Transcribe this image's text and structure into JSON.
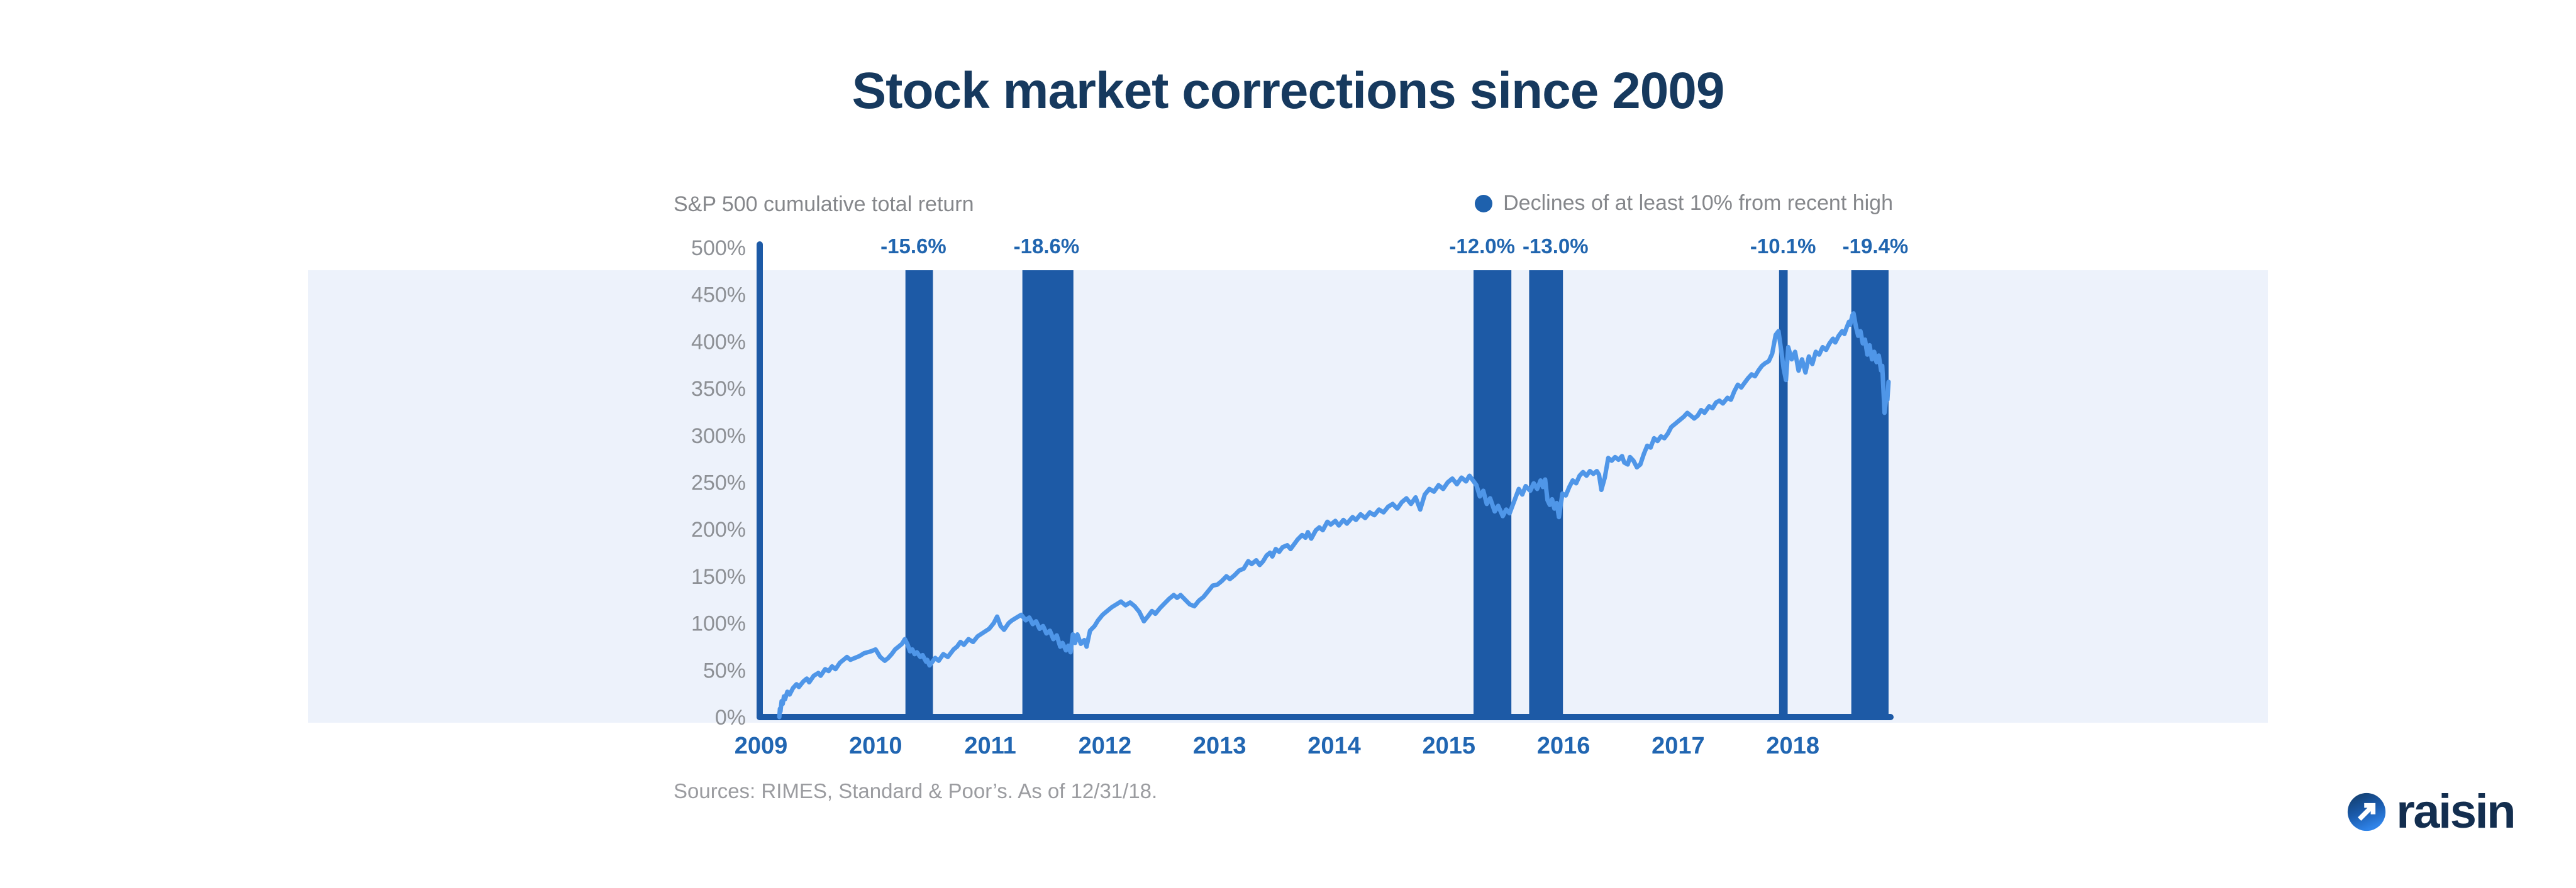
{
  "title": "Stock market corrections since 2009",
  "legend": {
    "series_label": "S&P 500 cumulative total return",
    "declines_label": "Declines of at least 10% from recent high"
  },
  "sources": "Sources: RIMES, Standard & Poor’s. As of 12/31/18.",
  "logo": {
    "text": "raisin",
    "icon": "arrow-up-right-circle-icon"
  },
  "colors": {
    "title_navy": "#16395e",
    "bar_blue": "#1d5aa6",
    "line_blue": "#4f96e8",
    "band_bg": "#edf2fb",
    "axis_text_blue": "#2166b2",
    "gray_text": "#85878b",
    "logo_navy": "#132e4f"
  },
  "chart_data": {
    "type": "line",
    "title": "Stock market corrections since 2009",
    "series_name": "S&P 500 cumulative total return",
    "xlabel": "",
    "ylabel": "S&P 500 cumulative total return (%)",
    "grid": false,
    "legend_position": "top",
    "x_ticks": [
      2009,
      2010,
      2011,
      2012,
      2013,
      2014,
      2015,
      2016,
      2017,
      2018
    ],
    "x_range": [
      2008.9,
      2019.2
    ],
    "y_axis": {
      "min": 0,
      "max": 500,
      "step": 50,
      "suffix": "%"
    },
    "declines": [
      {
        "label": "-15.6%",
        "from": 2010.26,
        "to": 2010.5,
        "label_at": 2010.33
      },
      {
        "label": "-18.6%",
        "from": 2011.28,
        "to": 2011.725,
        "label_at": 2011.49
      },
      {
        "label": "-12.0%",
        "from": 2015.215,
        "to": 2015.545,
        "label_at": 2015.29
      },
      {
        "label": "-13.0%",
        "from": 2015.7,
        "to": 2015.995,
        "label_at": 2015.93
      },
      {
        "label": "-10.1%",
        "from": 2017.88,
        "to": 2017.955,
        "label_at": 2017.915
      },
      {
        "label": "-19.4%",
        "from": 2018.51,
        "to": 2018.835,
        "label_at": 2018.72
      }
    ],
    "points": [
      [
        2009.16,
        0
      ],
      [
        2009.165,
        9
      ],
      [
        2009.17,
        6
      ],
      [
        2009.18,
        17
      ],
      [
        2009.19,
        14
      ],
      [
        2009.2,
        22
      ],
      [
        2009.21,
        19
      ],
      [
        2009.23,
        27
      ],
      [
        2009.25,
        24
      ],
      [
        2009.28,
        31
      ],
      [
        2009.31,
        35
      ],
      [
        2009.33,
        32
      ],
      [
        2009.37,
        38
      ],
      [
        2009.4,
        41
      ],
      [
        2009.42,
        37
      ],
      [
        2009.46,
        44
      ],
      [
        2009.5,
        47
      ],
      [
        2009.52,
        44
      ],
      [
        2009.56,
        51
      ],
      [
        2009.59,
        49
      ],
      [
        2009.62,
        54
      ],
      [
        2009.65,
        51
      ],
      [
        2009.69,
        58
      ],
      [
        2009.72,
        61
      ],
      [
        2009.75,
        64
      ],
      [
        2009.78,
        61
      ],
      [
        2009.82,
        63
      ],
      [
        2009.86,
        65
      ],
      [
        2009.9,
        68
      ],
      [
        2009.96,
        70
      ],
      [
        2010.0,
        72
      ],
      [
        2010.04,
        64
      ],
      [
        2010.08,
        60
      ],
      [
        2010.11,
        63
      ],
      [
        2010.14,
        67
      ],
      [
        2010.17,
        72
      ],
      [
        2010.2,
        75
      ],
      [
        2010.23,
        78
      ],
      [
        2010.255,
        83
      ],
      [
        2010.28,
        77
      ],
      [
        2010.3,
        70
      ],
      [
        2010.32,
        72
      ],
      [
        2010.34,
        67
      ],
      [
        2010.36,
        69
      ],
      [
        2010.39,
        64
      ],
      [
        2010.41,
        66
      ],
      [
        2010.44,
        59
      ],
      [
        2010.45,
        61
      ],
      [
        2010.47,
        55
      ],
      [
        2010.49,
        58
      ],
      [
        2010.52,
        63
      ],
      [
        2010.55,
        60
      ],
      [
        2010.59,
        67
      ],
      [
        2010.63,
        64
      ],
      [
        2010.68,
        72
      ],
      [
        2010.71,
        75
      ],
      [
        2010.74,
        80
      ],
      [
        2010.77,
        77
      ],
      [
        2010.81,
        83
      ],
      [
        2010.85,
        80
      ],
      [
        2010.89,
        86
      ],
      [
        2010.94,
        90
      ],
      [
        2010.99,
        94
      ],
      [
        2011.03,
        100
      ],
      [
        2011.06,
        107
      ],
      [
        2011.09,
        97
      ],
      [
        2011.12,
        93
      ],
      [
        2011.16,
        100
      ],
      [
        2011.19,
        103
      ],
      [
        2011.23,
        106
      ],
      [
        2011.27,
        109
      ],
      [
        2011.31,
        103
      ],
      [
        2011.34,
        106
      ],
      [
        2011.37,
        99
      ],
      [
        2011.4,
        102
      ],
      [
        2011.43,
        94
      ],
      [
        2011.46,
        97
      ],
      [
        2011.49,
        89
      ],
      [
        2011.52,
        92
      ],
      [
        2011.55,
        83
      ],
      [
        2011.58,
        87
      ],
      [
        2011.61,
        75
      ],
      [
        2011.63,
        79
      ],
      [
        2011.66,
        71
      ],
      [
        2011.68,
        76
      ],
      [
        2011.7,
        69
      ],
      [
        2011.72,
        88
      ],
      [
        2011.74,
        79
      ],
      [
        2011.76,
        88
      ],
      [
        2011.79,
        78
      ],
      [
        2011.82,
        82
      ],
      [
        2011.84,
        75
      ],
      [
        2011.87,
        92
      ],
      [
        2011.91,
        97
      ],
      [
        2011.94,
        103
      ],
      [
        2011.98,
        109
      ],
      [
        2012.02,
        113
      ],
      [
        2012.06,
        117
      ],
      [
        2012.1,
        120
      ],
      [
        2012.14,
        123
      ],
      [
        2012.18,
        119
      ],
      [
        2012.22,
        122
      ],
      [
        2012.26,
        118
      ],
      [
        2012.3,
        112
      ],
      [
        2012.34,
        102
      ],
      [
        2012.38,
        108
      ],
      [
        2012.41,
        113
      ],
      [
        2012.44,
        110
      ],
      [
        2012.48,
        116
      ],
      [
        2012.52,
        121
      ],
      [
        2012.56,
        126
      ],
      [
        2012.6,
        130
      ],
      [
        2012.63,
        127
      ],
      [
        2012.66,
        130
      ],
      [
        2012.7,
        125
      ],
      [
        2012.74,
        120
      ],
      [
        2012.78,
        118
      ],
      [
        2012.82,
        124
      ],
      [
        2012.86,
        128
      ],
      [
        2012.9,
        134
      ],
      [
        2012.94,
        140
      ],
      [
        2012.98,
        141
      ],
      [
        2013.02,
        145
      ],
      [
        2013.06,
        150
      ],
      [
        2013.09,
        147
      ],
      [
        2013.13,
        151
      ],
      [
        2013.17,
        156
      ],
      [
        2013.21,
        158
      ],
      [
        2013.25,
        166
      ],
      [
        2013.28,
        163
      ],
      [
        2013.32,
        167
      ],
      [
        2013.35,
        162
      ],
      [
        2013.38,
        166
      ],
      [
        2013.41,
        172
      ],
      [
        2013.44,
        175
      ],
      [
        2013.46,
        171
      ],
      [
        2013.49,
        179
      ],
      [
        2013.52,
        176
      ],
      [
        2013.55,
        181
      ],
      [
        2013.59,
        183
      ],
      [
        2013.62,
        179
      ],
      [
        2013.65,
        184
      ],
      [
        2013.68,
        189
      ],
      [
        2013.72,
        194
      ],
      [
        2013.75,
        191
      ],
      [
        2013.77,
        197
      ],
      [
        2013.8,
        190
      ],
      [
        2013.84,
        199
      ],
      [
        2013.87,
        202
      ],
      [
        2013.9,
        199
      ],
      [
        2013.94,
        208
      ],
      [
        2013.97,
        205
      ],
      [
        2014.01,
        209
      ],
      [
        2014.04,
        204
      ],
      [
        2014.08,
        210
      ],
      [
        2014.11,
        206
      ],
      [
        2014.16,
        213
      ],
      [
        2014.19,
        210
      ],
      [
        2014.23,
        216
      ],
      [
        2014.27,
        212
      ],
      [
        2014.31,
        218
      ],
      [
        2014.35,
        215
      ],
      [
        2014.39,
        221
      ],
      [
        2014.43,
        218
      ],
      [
        2014.47,
        224
      ],
      [
        2014.51,
        227
      ],
      [
        2014.55,
        222
      ],
      [
        2014.59,
        229
      ],
      [
        2014.63,
        233
      ],
      [
        2014.67,
        227
      ],
      [
        2014.71,
        234
      ],
      [
        2014.75,
        221
      ],
      [
        2014.79,
        237
      ],
      [
        2014.83,
        243
      ],
      [
        2014.87,
        240
      ],
      [
        2014.91,
        247
      ],
      [
        2014.95,
        243
      ],
      [
        2014.99,
        250
      ],
      [
        2015.03,
        254
      ],
      [
        2015.07,
        248
      ],
      [
        2015.11,
        255
      ],
      [
        2015.15,
        251
      ],
      [
        2015.18,
        257
      ],
      [
        2015.24,
        247
      ],
      [
        2015.27,
        235
      ],
      [
        2015.3,
        241
      ],
      [
        2015.33,
        227
      ],
      [
        2015.36,
        233
      ],
      [
        2015.4,
        219
      ],
      [
        2015.43,
        225
      ],
      [
        2015.47,
        214
      ],
      [
        2015.5,
        221
      ],
      [
        2015.53,
        217
      ],
      [
        2015.57,
        230
      ],
      [
        2015.61,
        243
      ],
      [
        2015.64,
        237
      ],
      [
        2015.67,
        246
      ],
      [
        2015.71,
        241
      ],
      [
        2015.74,
        249
      ],
      [
        2015.77,
        243
      ],
      [
        2015.8,
        252
      ],
      [
        2015.82,
        245
      ],
      [
        2015.84,
        253
      ],
      [
        2015.86,
        231
      ],
      [
        2015.88,
        226
      ],
      [
        2015.9,
        232
      ],
      [
        2015.92,
        222
      ],
      [
        2015.94,
        228
      ],
      [
        2015.96,
        213
      ],
      [
        2015.99,
        238
      ],
      [
        2016.02,
        236
      ],
      [
        2016.05,
        245
      ],
      [
        2016.08,
        252
      ],
      [
        2016.11,
        249
      ],
      [
        2016.14,
        257
      ],
      [
        2016.17,
        261
      ],
      [
        2016.2,
        257
      ],
      [
        2016.23,
        262
      ],
      [
        2016.26,
        259
      ],
      [
        2016.29,
        262
      ],
      [
        2016.31,
        258
      ],
      [
        2016.33,
        242
      ],
      [
        2016.36,
        255
      ],
      [
        2016.39,
        276
      ],
      [
        2016.42,
        273
      ],
      [
        2016.45,
        277
      ],
      [
        2016.48,
        274
      ],
      [
        2016.51,
        278
      ],
      [
        2016.53,
        271
      ],
      [
        2016.56,
        269
      ],
      [
        2016.58,
        277
      ],
      [
        2016.61,
        273
      ],
      [
        2016.64,
        266
      ],
      [
        2016.67,
        269
      ],
      [
        2016.7,
        280
      ],
      [
        2016.73,
        289
      ],
      [
        2016.76,
        287
      ],
      [
        2016.79,
        297
      ],
      [
        2016.82,
        294
      ],
      [
        2016.85,
        299
      ],
      [
        2016.88,
        297
      ],
      [
        2016.91,
        302
      ],
      [
        2016.94,
        309
      ],
      [
        2016.98,
        313
      ],
      [
        2017.02,
        317
      ],
      [
        2017.05,
        320
      ],
      [
        2017.08,
        324
      ],
      [
        2017.11,
        321
      ],
      [
        2017.14,
        318
      ],
      [
        2017.17,
        321
      ],
      [
        2017.2,
        327
      ],
      [
        2017.23,
        324
      ],
      [
        2017.27,
        331
      ],
      [
        2017.3,
        329
      ],
      [
        2017.33,
        335
      ],
      [
        2017.36,
        337
      ],
      [
        2017.39,
        334
      ],
      [
        2017.43,
        340
      ],
      [
        2017.46,
        338
      ],
      [
        2017.49,
        347
      ],
      [
        2017.52,
        354
      ],
      [
        2017.55,
        351
      ],
      [
        2017.58,
        356
      ],
      [
        2017.61,
        361
      ],
      [
        2017.64,
        365
      ],
      [
        2017.67,
        363
      ],
      [
        2017.7,
        369
      ],
      [
        2017.73,
        374
      ],
      [
        2017.76,
        377
      ],
      [
        2017.79,
        379
      ],
      [
        2017.82,
        387
      ],
      [
        2017.85,
        407
      ],
      [
        2017.875,
        411
      ],
      [
        2017.9,
        389
      ],
      [
        2017.92,
        371
      ],
      [
        2017.94,
        359
      ],
      [
        2017.96,
        394
      ],
      [
        2017.99,
        381
      ],
      [
        2018.02,
        389
      ],
      [
        2018.05,
        369
      ],
      [
        2018.08,
        381
      ],
      [
        2018.11,
        367
      ],
      [
        2018.14,
        384
      ],
      [
        2018.17,
        376
      ],
      [
        2018.2,
        389
      ],
      [
        2018.23,
        386
      ],
      [
        2018.26,
        394
      ],
      [
        2018.29,
        391
      ],
      [
        2018.32,
        398
      ],
      [
        2018.35,
        403
      ],
      [
        2018.37,
        399
      ],
      [
        2018.4,
        406
      ],
      [
        2018.43,
        411
      ],
      [
        2018.45,
        408
      ],
      [
        2018.47,
        415
      ],
      [
        2018.49,
        421
      ],
      [
        2018.5,
        418
      ],
      [
        2018.52,
        428
      ],
      [
        2018.53,
        430
      ],
      [
        2018.55,
        416
      ],
      [
        2018.57,
        406
      ],
      [
        2018.59,
        411
      ],
      [
        2018.61,
        398
      ],
      [
        2018.63,
        402
      ],
      [
        2018.65,
        386
      ],
      [
        2018.67,
        396
      ],
      [
        2018.69,
        381
      ],
      [
        2018.71,
        389
      ],
      [
        2018.73,
        378
      ],
      [
        2018.75,
        385
      ],
      [
        2018.77,
        369
      ],
      [
        2018.78,
        374
      ],
      [
        2018.8,
        324
      ],
      [
        2018.81,
        335
      ],
      [
        2018.815,
        342
      ],
      [
        2018.825,
        338
      ],
      [
        2018.835,
        357
      ]
    ]
  }
}
